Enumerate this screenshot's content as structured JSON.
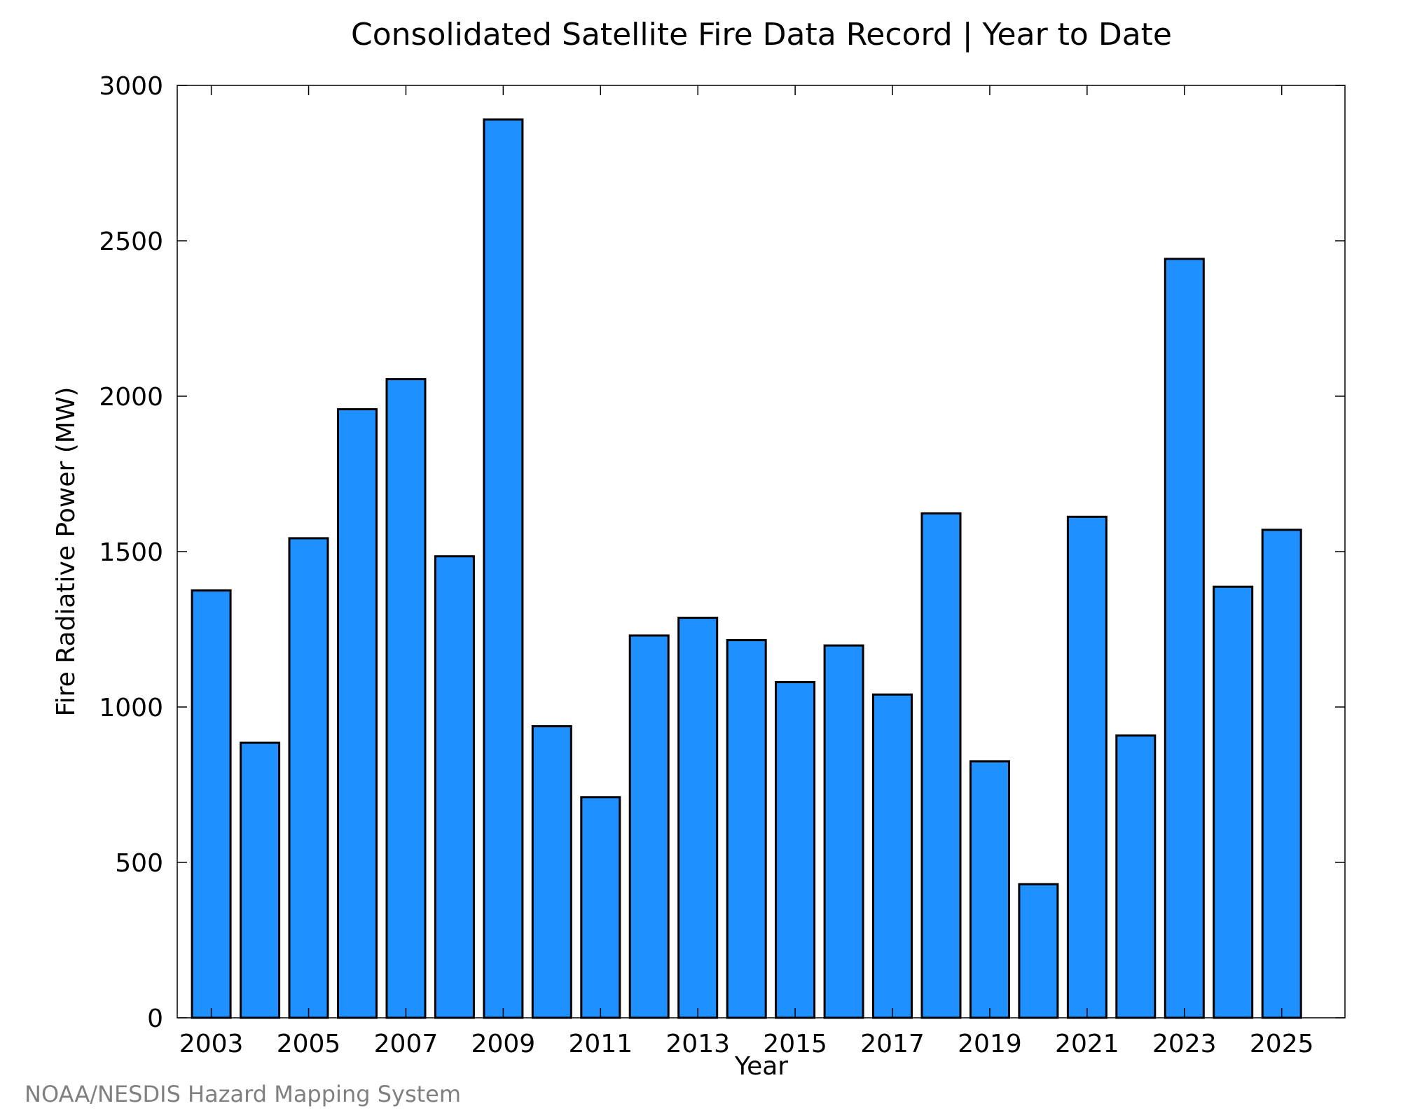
{
  "chart_data": {
    "type": "bar",
    "title": "Consolidated Satellite Fire Data Record | Year to Date",
    "xlabel": "Year",
    "ylabel": "Fire Radiative Power (MW)",
    "ylim": [
      0,
      3000
    ],
    "yticks": [
      0,
      500,
      1000,
      1500,
      2000,
      2500,
      3000
    ],
    "xlim": [
      2002.3,
      2026.3
    ],
    "xticks": [
      2003,
      2005,
      2007,
      2009,
      2011,
      2013,
      2015,
      2017,
      2019,
      2021,
      2023,
      2025
    ],
    "categories": [
      2003,
      2004,
      2005,
      2006,
      2007,
      2008,
      2009,
      2010,
      2011,
      2012,
      2013,
      2014,
      2015,
      2016,
      2017,
      2018,
      2019,
      2020,
      2021,
      2022,
      2023,
      2024,
      2025
    ],
    "values": [
      1375,
      885,
      1543,
      1958,
      2055,
      1485,
      2890,
      938,
      710,
      1230,
      1287,
      1215,
      1080,
      1198,
      1040,
      1623,
      825,
      430,
      1612,
      908,
      2442,
      1387,
      1570
    ],
    "bar_color": "#1e90ff",
    "grid": false,
    "legend": "none"
  },
  "credit": "NOAA/NESDIS Hazard Mapping System"
}
